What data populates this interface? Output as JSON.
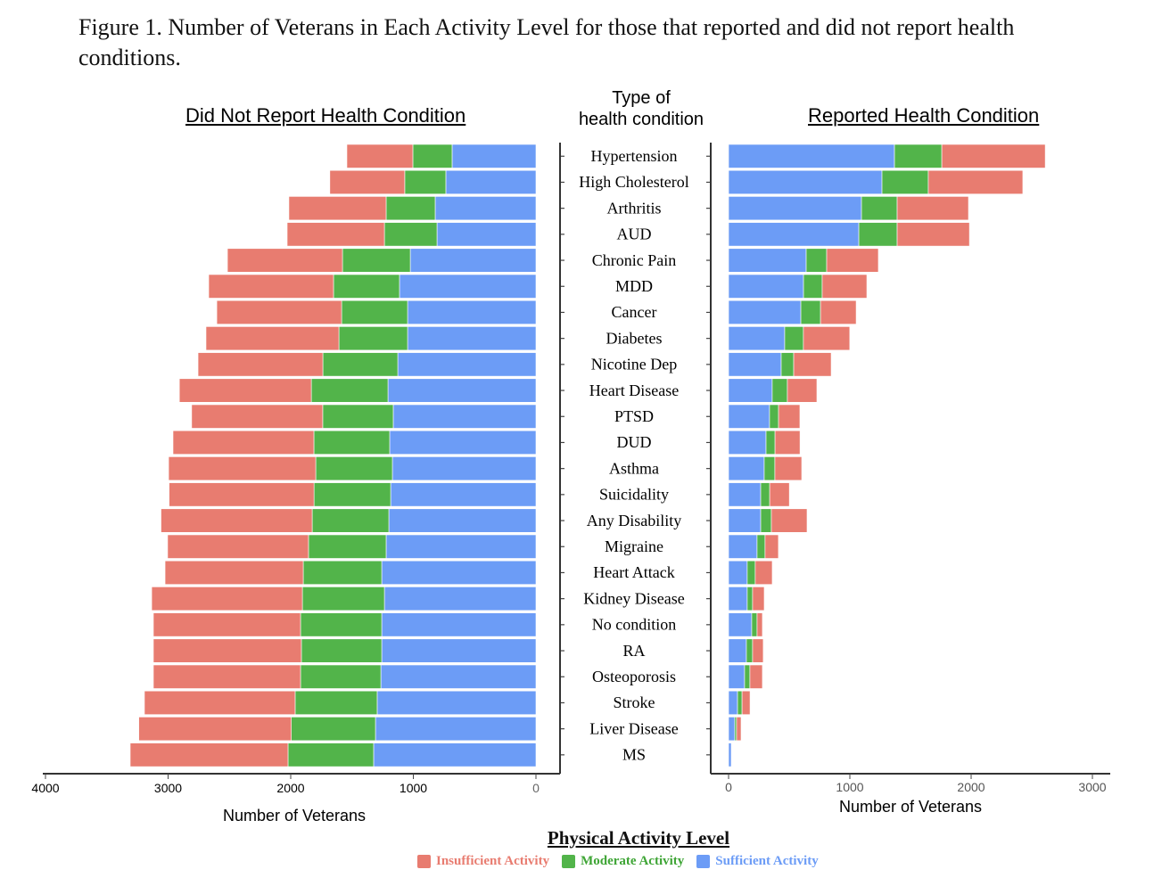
{
  "figure_title": "Figure 1. Number of Veterans in Each Activity Level for those that reported and did not report health conditions.",
  "colors": {
    "insufficient": "#E87C70",
    "moderate": "#52B44A",
    "sufficient": "#6C9CF6"
  },
  "chart_data": [
    {
      "type": "bar",
      "orientation": "horizontal-stacked",
      "direction": "reversed",
      "title": "Did Not Report Health Condition",
      "xlabel": "Number of Veterans",
      "ylabel": "",
      "xlim": [
        0,
        4000
      ],
      "xticks": [
        "0",
        "1000",
        "2000",
        "3000",
        "4000"
      ],
      "categories": [
        "Hypertension",
        "High Cholesterol",
        "Arthritis",
        "AUD",
        "Chronic Pain",
        "MDD",
        "Cancer",
        "Diabetes",
        "Nicotine Dep",
        "Heart Disease",
        "PTSD",
        "DUD",
        "Asthma",
        "Suicidality",
        "Any Disability",
        "Migraine",
        "Heart Attack",
        "Kidney Disease",
        "No condition",
        "RA",
        "Osteoporosis",
        "Stroke",
        "Liver Disease",
        "MS"
      ],
      "series": [
        {
          "name": "Sufficient Activity",
          "values": [
            684,
            735,
            822,
            807,
            1025,
            1113,
            1047,
            1047,
            1127,
            1207,
            1164,
            1193,
            1171,
            1185,
            1200,
            1222,
            1258,
            1236,
            1258,
            1258,
            1265,
            1295,
            1309,
            1324
          ]
        },
        {
          "name": "Moderate Activity",
          "values": [
            320,
            335,
            400,
            429,
            553,
            538,
            538,
            560,
            611,
            625,
            575,
            618,
            625,
            625,
            625,
            633,
            640,
            669,
            662,
            655,
            655,
            669,
            686,
            698
          ]
        },
        {
          "name": "Insufficient Activity",
          "values": [
            538,
            611,
            793,
            793,
            938,
            1018,
            1018,
            1084,
            1018,
            1076,
            1069,
            1149,
            1200,
            1182,
            1233,
            1149,
            1127,
            1229,
            1200,
            1207,
            1200,
            1229,
            1244,
            1287
          ]
        }
      ]
    },
    {
      "type": "bar",
      "orientation": "horizontal-stacked",
      "title": "Reported Health Condition",
      "xlabel": "Number of Veterans",
      "ylabel": "",
      "xlim": [
        0,
        3000
      ],
      "xticks": [
        "0",
        "1000",
        "2000",
        "3000"
      ],
      "categories": [
        "Hypertension",
        "High Cholesterol",
        "Arthritis",
        "AUD",
        "Chronic Pain",
        "MDD",
        "Cancer",
        "Diabetes",
        "Nicotine Dep",
        "Heart Disease",
        "PTSD",
        "DUD",
        "Asthma",
        "Suicidality",
        "Any Disability",
        "Migraine",
        "Heart Attack",
        "Kidney Disease",
        "No condition",
        "RA",
        "Osteoporosis",
        "Stroke",
        "Liver Disease",
        "MS"
      ],
      "series": [
        {
          "name": "Sufficient Activity",
          "values": [
            1368,
            1265,
            1096,
            1074,
            640,
            618,
            596,
            463,
            434,
            360,
            338,
            309,
            294,
            265,
            265,
            235,
            154,
            154,
            191,
            147,
            132,
            74,
            51,
            22
          ]
        },
        {
          "name": "Moderate Activity",
          "values": [
            390,
            382,
            294,
            316,
            169,
            154,
            162,
            154,
            103,
            125,
            74,
            74,
            88,
            74,
            88,
            66,
            66,
            44,
            44,
            51,
            44,
            37,
            15,
            0
          ]
        },
        {
          "name": "Insufficient Activity",
          "values": [
            853,
            779,
            588,
            596,
            426,
            368,
            294,
            382,
            309,
            243,
            176,
            206,
            221,
            162,
            294,
            110,
            140,
            96,
            44,
            88,
            103,
            66,
            37,
            0
          ]
        }
      ]
    }
  ],
  "center_axis_title": {
    "line1": "Type of",
    "line2": "health condition"
  },
  "legend": {
    "title": "Physical Activity Level",
    "items": [
      {
        "label": "Insufficient Activity",
        "color": "#E87C70"
      },
      {
        "label": "Moderate Activity",
        "color": "#52B44A"
      },
      {
        "label": "Sufficient Activity",
        "color": "#6C9CF6"
      }
    ]
  }
}
